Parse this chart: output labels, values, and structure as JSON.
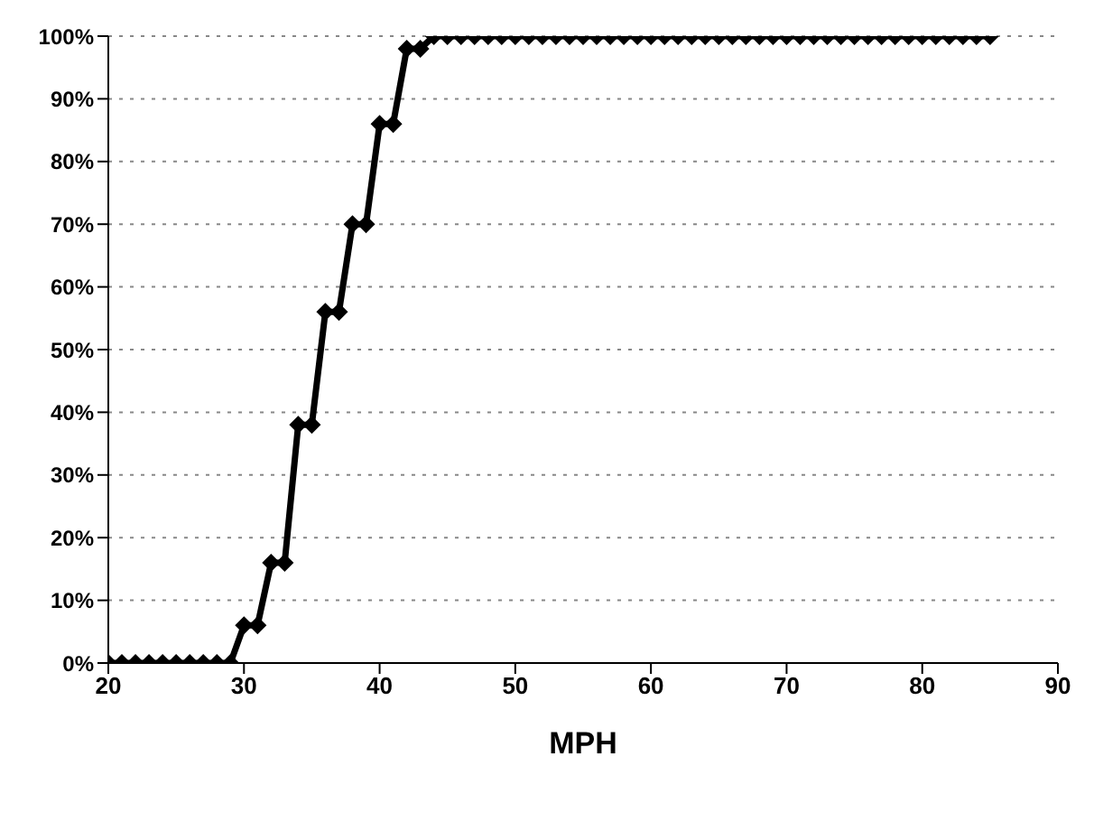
{
  "chart_data": {
    "type": "line",
    "xlabel": "MPH",
    "x": [
      20,
      21,
      22,
      23,
      24,
      25,
      26,
      27,
      28,
      29,
      30,
      31,
      32,
      33,
      34,
      35,
      36,
      37,
      38,
      39,
      40,
      41,
      42,
      43,
      44,
      45,
      46,
      47,
      48,
      49,
      50,
      51,
      52,
      53,
      54,
      55,
      56,
      57,
      58,
      59,
      60,
      61,
      62,
      63,
      64,
      65,
      66,
      67,
      68,
      69,
      70,
      71,
      72,
      73,
      74,
      75,
      76,
      77,
      78,
      79,
      80,
      81,
      82,
      83,
      84,
      85
    ],
    "series": [
      {
        "color": "#000000",
        "values": [
          0,
          0,
          0,
          0,
          0,
          0,
          0,
          0,
          0,
          0,
          6,
          6,
          16,
          16,
          38,
          38,
          56,
          56,
          70,
          70,
          86,
          86,
          98,
          98,
          100,
          100,
          100,
          100,
          100,
          100,
          100,
          100,
          100,
          100,
          100,
          100,
          100,
          100,
          100,
          100,
          100,
          100,
          100,
          100,
          100,
          100,
          100,
          100,
          100,
          100,
          100,
          100,
          100,
          100,
          100,
          100,
          100,
          100,
          100,
          100,
          100,
          100,
          100,
          100,
          100,
          100
        ]
      }
    ],
    "xlim": [
      20,
      90
    ],
    "xticks": [
      20,
      30,
      40,
      50,
      60,
      70,
      80,
      90
    ],
    "ylim": [
      0,
      100
    ],
    "yticks": [
      {
        "value": 0,
        "label": "0%"
      },
      {
        "value": 10,
        "label": "10%"
      },
      {
        "value": 20,
        "label": "20%"
      },
      {
        "value": 30,
        "label": "30%"
      },
      {
        "value": 40,
        "label": "40%"
      },
      {
        "value": 50,
        "label": "50%"
      },
      {
        "value": 60,
        "label": "60%"
      },
      {
        "value": 70,
        "label": "70%"
      },
      {
        "value": 80,
        "label": "80%"
      },
      {
        "value": 90,
        "label": "90%"
      },
      {
        "value": 100,
        "label": "100%"
      }
    ],
    "grid": "y",
    "marker": "diamond",
    "line_style": "solid"
  }
}
